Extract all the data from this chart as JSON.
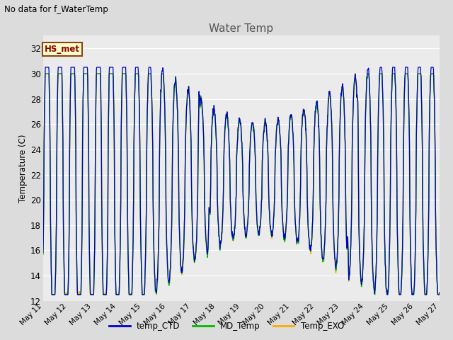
{
  "title": "Water Temp",
  "ylabel": "Temperature (C)",
  "no_data_text": "No data for f_WaterTemp",
  "annotation_text": "HS_met",
  "legend_labels": [
    "temp_CTD",
    "MD_Temp",
    "Temp_EXO"
  ],
  "legend_colors": [
    "#0000cc",
    "#00bb00",
    "#ffaa00"
  ],
  "ylim": [
    12,
    33
  ],
  "yticks": [
    12,
    14,
    16,
    18,
    20,
    22,
    24,
    26,
    28,
    30,
    32
  ],
  "bg_color": "#dcdcdc",
  "plot_bg_color": "#ebebeb",
  "x_tick_days": [
    11,
    12,
    13,
    14,
    15,
    16,
    17,
    18,
    19,
    20,
    21,
    22,
    23,
    24,
    25,
    26,
    27
  ],
  "x_tick_labels": [
    "May 11",
    "May 12",
    "May 13",
    "May 14",
    "May 15",
    "May 16",
    "May 17",
    "May 18",
    "May 19",
    "May 20",
    "May 21",
    "May 22",
    "May 23",
    "May 24",
    "May 25",
    "May 26",
    "May 27"
  ]
}
